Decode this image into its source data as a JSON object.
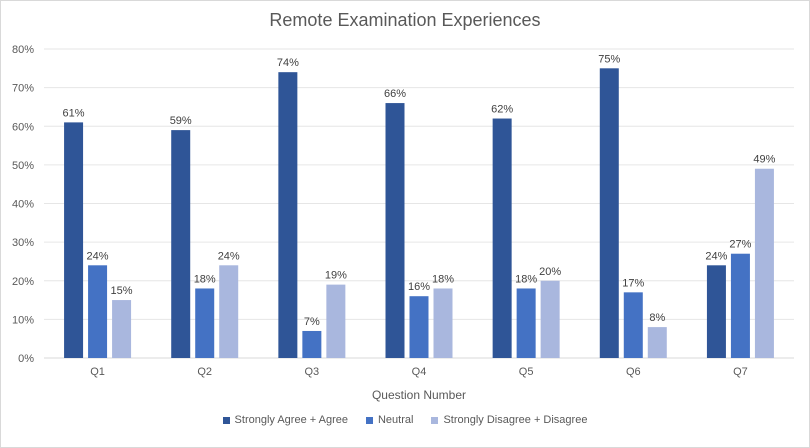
{
  "chart_data": {
    "type": "bar",
    "title": "Remote Examination Experiences",
    "xlabel": "Question Number",
    "ylabel": "",
    "ylim": [
      0,
      80
    ],
    "yticks": [
      "0%",
      "10%",
      "20%",
      "30%",
      "40%",
      "50%",
      "60%",
      "70%",
      "80%"
    ],
    "ytick_values": [
      0,
      10,
      20,
      30,
      40,
      50,
      60,
      70,
      80
    ],
    "grid": true,
    "legend_position": "bottom",
    "categories": [
      "Q1",
      "Q2",
      "Q3",
      "Q4",
      "Q5",
      "Q6",
      "Q7"
    ],
    "series": [
      {
        "name": "Strongly Agree + Agree",
        "color": "#2f5597",
        "values": [
          61,
          59,
          74,
          66,
          62,
          75,
          24
        ],
        "labels": [
          "61%",
          "59%",
          "74%",
          "66%",
          "62%",
          "75%",
          "24%"
        ]
      },
      {
        "name": "Neutral",
        "color": "#4472c4",
        "values": [
          24,
          18,
          7,
          16,
          18,
          17,
          27
        ],
        "labels": [
          "24%",
          "18%",
          "7%",
          "16%",
          "18%",
          "17%",
          "27%"
        ]
      },
      {
        "name": "Strongly Disagree + Disagree",
        "color": "#a9b7de",
        "values": [
          15,
          24,
          19,
          18,
          20,
          8,
          49
        ],
        "labels": [
          "15%",
          "24%",
          "19%",
          "18%",
          "20%",
          "8%",
          "49%"
        ]
      }
    ]
  }
}
